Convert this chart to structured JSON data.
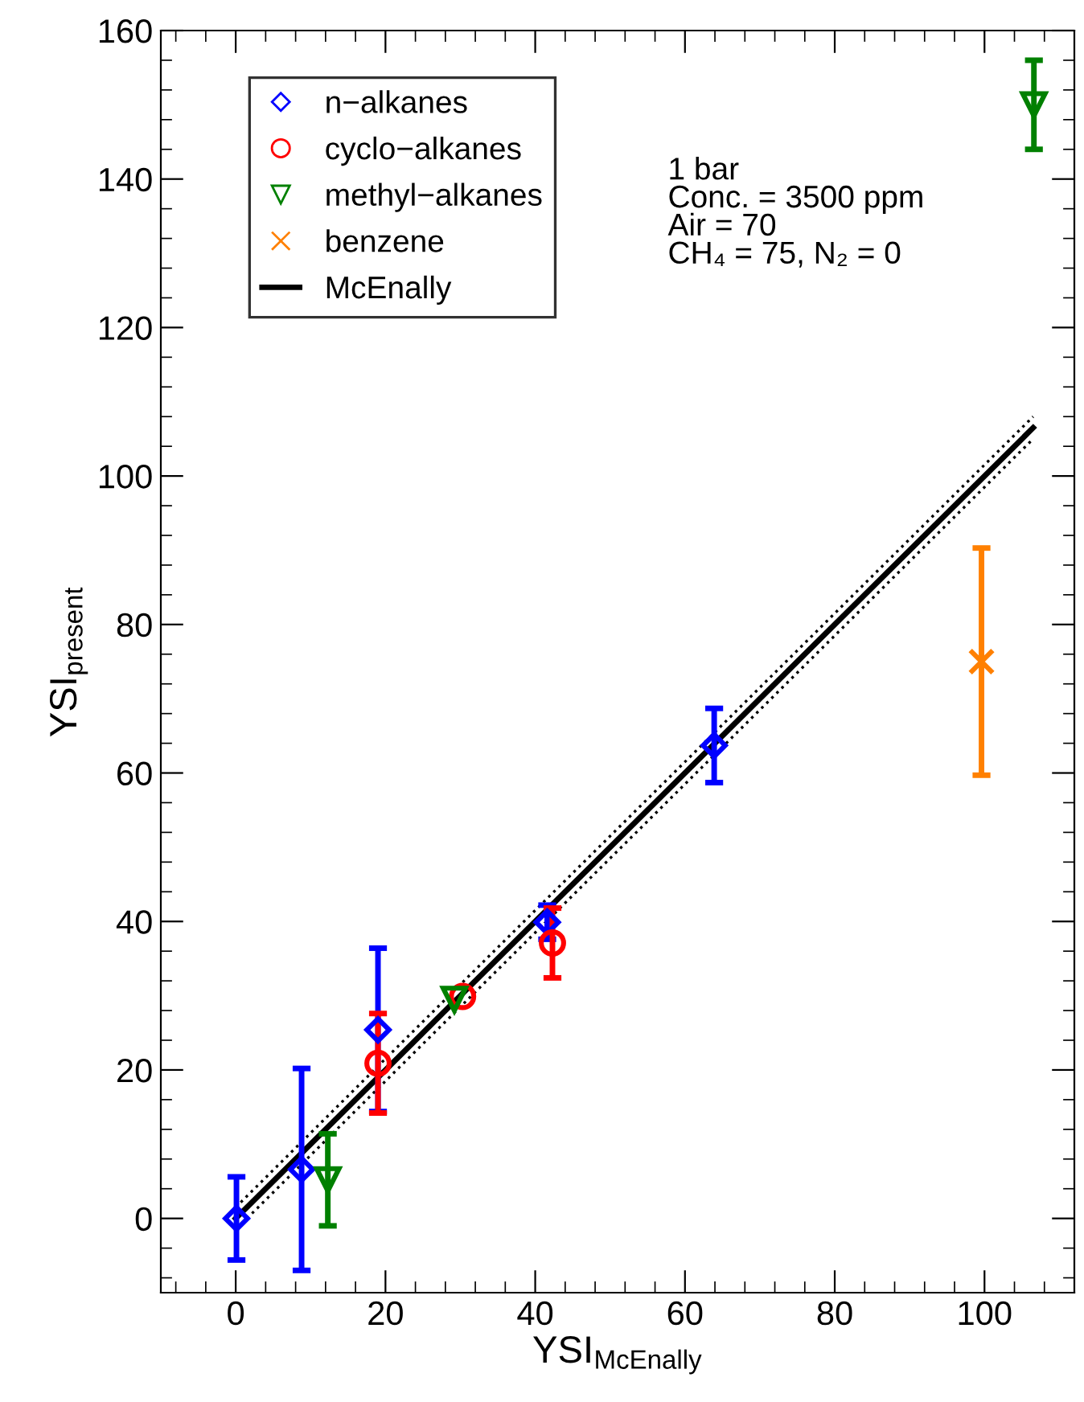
{
  "chart_data": {
    "type": "scatter",
    "xlabel": "YSI$_{McEnally}$",
    "ylabel": "YSI$_{present}$",
    "xlim": [
      -10,
      112
    ],
    "ylim": [
      -10,
      160
    ],
    "xticks": [
      0,
      20,
      40,
      60,
      80,
      100
    ],
    "yticks": [
      0,
      20,
      40,
      60,
      80,
      100,
      120,
      140,
      160
    ],
    "grid": false,
    "legend": "top left",
    "annotations": [
      "1 bar\nConc. = 3500 ppm\nAir = 70\nCH₄ = 75, N₂ = 0"
    ],
    "series": [
      {
        "name": "n−alkanes",
        "marker": "diamond",
        "color": "#0000ff",
        "x": [
          0.1,
          8.8,
          19,
          41.6,
          63.9
        ],
        "values": [
          0,
          6.6,
          25.4,
          39.9,
          63.7
        ],
        "errors": [
          5.6,
          13.6,
          11,
          2.3,
          5
        ]
      },
      {
        "name": "cyclo−alkanes",
        "marker": "circle",
        "color": "#ff0000",
        "x": [
          19,
          30.3,
          42.3
        ],
        "values": [
          20.9,
          29.9,
          37.1
        ],
        "errors": [
          6.7,
          null,
          4.7
        ]
      },
      {
        "name": "methyl−alkanes",
        "marker": "triangle",
        "color": "#008000",
        "x": [
          12.3,
          29.2,
          106.6
        ],
        "values": [
          5.2,
          29.5,
          150
        ],
        "errors": [
          6.2,
          null,
          6
        ]
      },
      {
        "name": "benzene",
        "marker": "cross",
        "color": "#ff8000",
        "x": [
          99.6
        ],
        "values": [
          75
        ],
        "errors": [
          15.3
        ]
      },
      {
        "name": "McEnally",
        "type": "line",
        "line_style": "solid",
        "color": "#000000",
        "x": [
          0,
          106.5
        ],
        "values": [
          0,
          106.5
        ]
      },
      {
        "type": "line",
        "line_style": "dotted",
        "color": "#000000",
        "x": [
          0,
          106.5
        ],
        "values": [
          1.5,
          108
        ]
      },
      {
        "type": "line",
        "line_style": "dotted",
        "color": "#000000",
        "x": [
          1.5,
          106.5
        ],
        "values": [
          0,
          105
        ]
      }
    ]
  }
}
